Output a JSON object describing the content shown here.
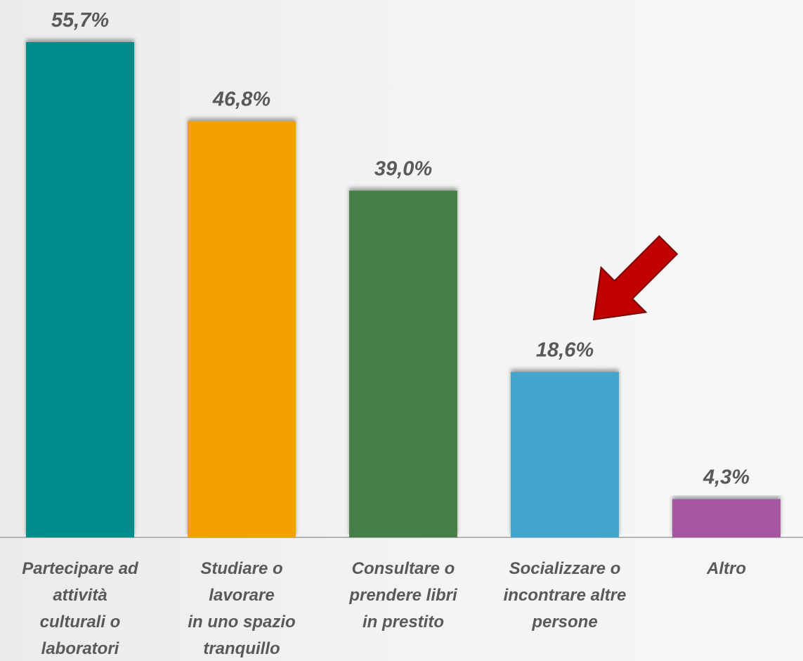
{
  "chart_data": {
    "type": "bar",
    "categories": [
      "Partecipare ad\nattività\nculturali o\nlaboratori",
      "Studiare o\nlavorare\nin uno spazio\ntranquillo",
      "Consultare o\nprendere libri\nin prestito",
      "Socializzare o\nincontrare altre\npersone",
      "Altro"
    ],
    "values": [
      55.7,
      46.8,
      39.0,
      18.6,
      4.3
    ],
    "value_labels": [
      "55,7%",
      "46,8%",
      "39,0%",
      "18,6%",
      "4,3%"
    ],
    "colors": [
      "#008b8b",
      "#f4a000",
      "#467f4a",
      "#42a5cc",
      "#a656a0"
    ]
  }
}
